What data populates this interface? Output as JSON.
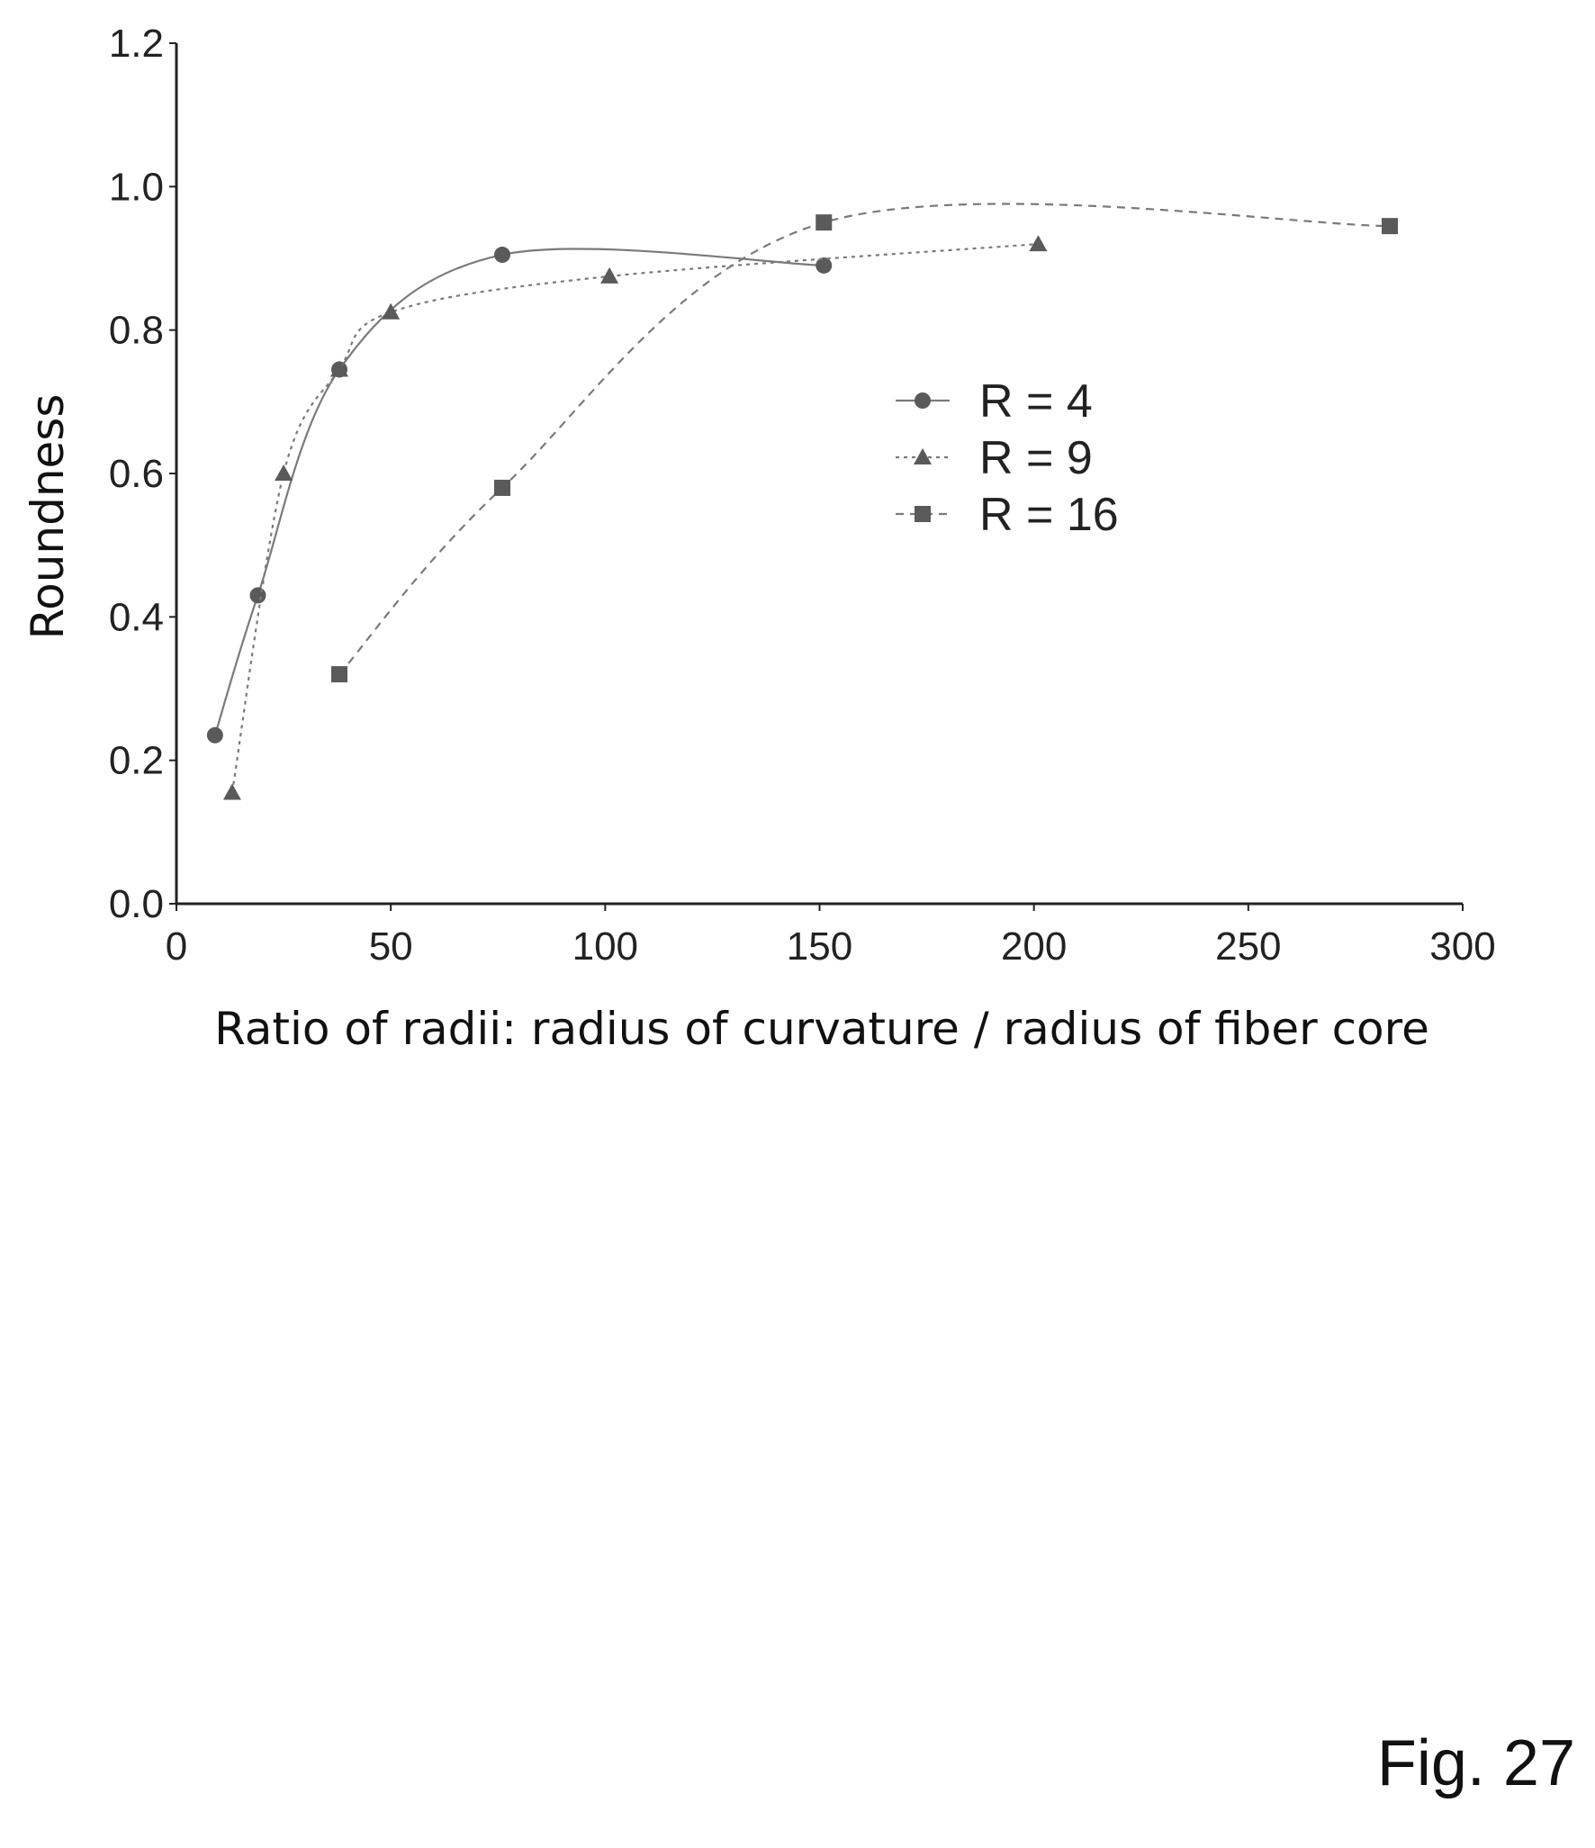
{
  "chart_data": {
    "type": "line",
    "xlabel": "Ratio of radii: radius of curvature / radius of fiber core",
    "ylabel": "Roundness",
    "xlim": [
      0,
      300
    ],
    "ylim": [
      0,
      1.2
    ],
    "x_ticks": [
      "0",
      "50",
      "100",
      "150",
      "200",
      "250",
      "300"
    ],
    "y_ticks": [
      "0.0",
      "0.2",
      "0.4",
      "0.6",
      "0.8",
      "1.0",
      "1.2"
    ],
    "grid": false,
    "legend_position": "center-right",
    "series": [
      {
        "name": "R = 4",
        "marker": "circle",
        "line_style": "solid",
        "x": [
          9,
          19,
          38,
          76,
          151
        ],
        "y": [
          0.235,
          0.43,
          0.745,
          0.905,
          0.89
        ]
      },
      {
        "name": "R = 9",
        "marker": "triangle",
        "line_style": "dotted",
        "x": [
          13,
          25,
          38,
          50,
          101,
          201
        ],
        "y": [
          0.155,
          0.6,
          0.745,
          0.825,
          0.875,
          0.92
        ]
      },
      {
        "name": "R = 16",
        "marker": "square",
        "line_style": "dashed",
        "x": [
          38,
          76,
          151,
          283
        ],
        "y": [
          0.32,
          0.58,
          0.95,
          0.945
        ]
      }
    ],
    "colors": {
      "series": "#7a7a7a",
      "marker": "#5a5a5a",
      "axis": "#222222"
    }
  },
  "figure_label": "Fig. 27"
}
